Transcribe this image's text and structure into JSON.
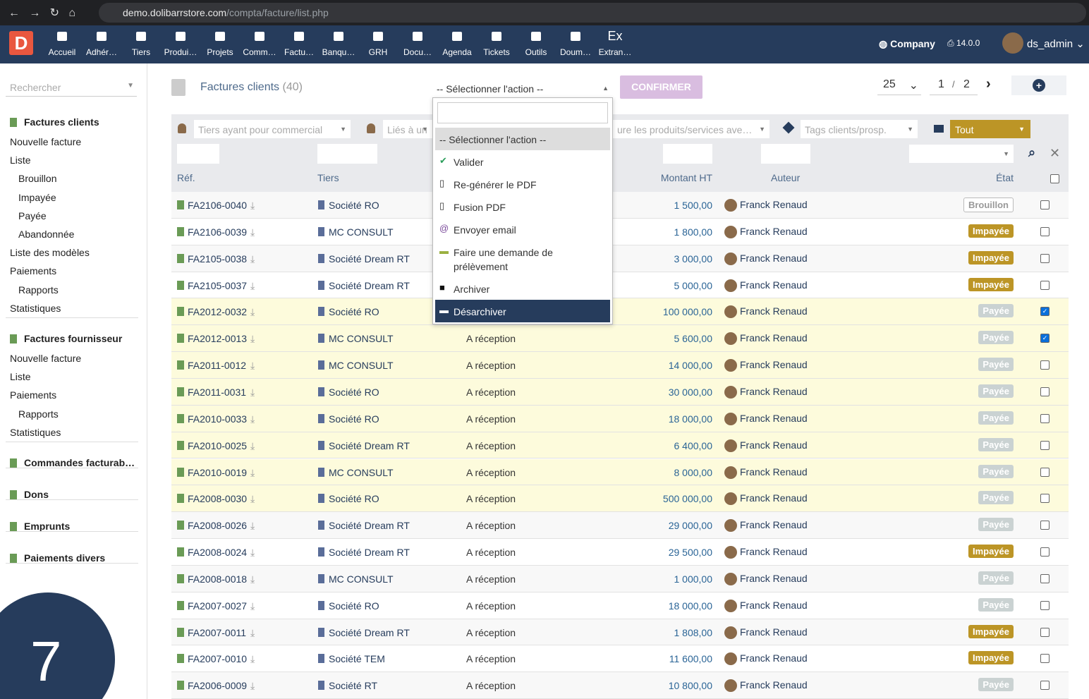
{
  "browser": {
    "url_host": "demo.dolibarrstore.com",
    "url_path": "/compta/facture/list.php"
  },
  "topnav": {
    "logo": "D",
    "items": [
      "Accueil",
      "Adhér…",
      "Tiers",
      "Produi…",
      "Projets",
      "Comm…",
      "Factu…",
      "Banqu…",
      "GRH",
      "Docu…",
      "Agenda",
      "Tickets",
      "Outils",
      "Doum…",
      "Extran…"
    ],
    "extran_icon": "Ex",
    "company": "Company",
    "version": "14.0.0",
    "user": "ds_admin"
  },
  "sidebar": {
    "search": "Rechercher",
    "sections": [
      {
        "title": "Factures clients",
        "items": [
          {
            "label": "Nouvelle facture",
            "sub": false
          },
          {
            "label": "Liste",
            "sub": false
          },
          {
            "label": "Brouillon",
            "sub": true
          },
          {
            "label": "Impayée",
            "sub": true
          },
          {
            "label": "Payée",
            "sub": true
          },
          {
            "label": "Abandonnée",
            "sub": true
          },
          {
            "label": "Liste des modèles",
            "sub": false
          },
          {
            "label": "Paiements",
            "sub": false
          },
          {
            "label": "Rapports",
            "sub": true
          },
          {
            "label": "Statistiques",
            "sub": false
          }
        ]
      },
      {
        "title": "Factures fournisseur",
        "items": [
          {
            "label": "Nouvelle facture",
            "sub": false
          },
          {
            "label": "Liste",
            "sub": false
          },
          {
            "label": "Paiements",
            "sub": false
          },
          {
            "label": "Rapports",
            "sub": true
          },
          {
            "label": "Statistiques",
            "sub": false
          }
        ]
      },
      {
        "title": "Commandes facturab…",
        "items": []
      },
      {
        "title": "Dons",
        "items": []
      },
      {
        "title": "Emprunts",
        "items": []
      },
      {
        "title": "Paiements divers",
        "items": []
      }
    ]
  },
  "list": {
    "title": "Factures clients",
    "count": "(40)",
    "action_select": "-- Sélectionner l'action --",
    "confirm": "CONFIRMER",
    "page_size": "25",
    "page": "1",
    "page_sep": "/",
    "pages": "2"
  },
  "filters": {
    "commercial": "Tiers ayant pour commercial",
    "linked": "Liés à un",
    "products": "ure les produits/services ave…",
    "tags": "Tags clients/prosp.",
    "status": "Tout"
  },
  "columns": {
    "ref": "Réf.",
    "tiers": "Tiers",
    "amount": "Montant HT",
    "author": "Auteur",
    "status": "État"
  },
  "dropdown": {
    "options": [
      "-- Sélectionner l'action --",
      "Valider",
      "Re-générer le PDF",
      "Fusion PDF",
      "Envoyer email",
      "Faire une demande de prélèvement",
      "Archiver",
      "Désarchiver"
    ]
  },
  "rows": [
    {
      "ref": "FA2106-0040",
      "tiers": "Société RO",
      "terms": null,
      "amount": "1 500,00",
      "author": "Franck Renaud",
      "status": "Brouillon",
      "checked": false,
      "highlight": false
    },
    {
      "ref": "FA2106-0039",
      "tiers": "MC CONSULT",
      "terms": null,
      "amount": "1 800,00",
      "author": "Franck Renaud",
      "status": "Impayée",
      "checked": false,
      "highlight": false
    },
    {
      "ref": "FA2105-0038",
      "tiers": "Société Dream RT",
      "terms": null,
      "amount": "3 000,00",
      "author": "Franck Renaud",
      "status": "Impayée",
      "checked": false,
      "highlight": false
    },
    {
      "ref": "FA2105-0037",
      "tiers": "Société Dream RT",
      "terms": null,
      "amount": "5 000,00",
      "author": "Franck Renaud",
      "status": "Impayée",
      "checked": false,
      "highlight": false
    },
    {
      "ref": "FA2012-0032",
      "tiers": "Société RO",
      "terms": null,
      "amount": "100 000,00",
      "author": "Franck Renaud",
      "status": "Payée",
      "checked": true,
      "highlight": true
    },
    {
      "ref": "FA2012-0013",
      "tiers": "MC CONSULT",
      "terms": "A réception",
      "amount": "5 600,00",
      "author": "Franck Renaud",
      "status": "Payée",
      "checked": true,
      "highlight": true
    },
    {
      "ref": "FA2011-0012",
      "tiers": "MC CONSULT",
      "terms": "A réception",
      "amount": "14 000,00",
      "author": "Franck Renaud",
      "status": "Payée",
      "checked": false,
      "highlight": true
    },
    {
      "ref": "FA2011-0031",
      "tiers": "Société RO",
      "terms": "A réception",
      "amount": "30 000,00",
      "author": "Franck Renaud",
      "status": "Payée",
      "checked": false,
      "highlight": true
    },
    {
      "ref": "FA2010-0033",
      "tiers": "Société RO",
      "terms": "A réception",
      "amount": "18 000,00",
      "author": "Franck Renaud",
      "status": "Payée",
      "checked": false,
      "highlight": true
    },
    {
      "ref": "FA2010-0025",
      "tiers": "Société Dream RT",
      "terms": "A réception",
      "amount": "6 400,00",
      "author": "Franck Renaud",
      "status": "Payée",
      "checked": false,
      "highlight": true
    },
    {
      "ref": "FA2010-0019",
      "tiers": "MC CONSULT",
      "terms": "A réception",
      "amount": "8 000,00",
      "author": "Franck Renaud",
      "status": "Payée",
      "checked": false,
      "highlight": true
    },
    {
      "ref": "FA2008-0030",
      "tiers": "Société RO",
      "terms": "A réception",
      "amount": "500 000,00",
      "author": "Franck Renaud",
      "status": "Payée",
      "checked": false,
      "highlight": true
    },
    {
      "ref": "FA2008-0026",
      "tiers": "Société Dream RT",
      "terms": "A réception",
      "amount": "29 000,00",
      "author": "Franck Renaud",
      "status": "Payée",
      "checked": false,
      "highlight": false
    },
    {
      "ref": "FA2008-0024",
      "tiers": "Société Dream RT",
      "terms": "A réception",
      "amount": "29 500,00",
      "author": "Franck Renaud",
      "status": "Impayée",
      "checked": false,
      "highlight": false
    },
    {
      "ref": "FA2008-0018",
      "tiers": "MC CONSULT",
      "terms": "A réception",
      "amount": "1 000,00",
      "author": "Franck Renaud",
      "status": "Payée",
      "checked": false,
      "highlight": false
    },
    {
      "ref": "FA2007-0027",
      "tiers": "Société RO",
      "terms": "A réception",
      "amount": "18 000,00",
      "author": "Franck Renaud",
      "status": "Payée",
      "checked": false,
      "highlight": false
    },
    {
      "ref": "FA2007-0011",
      "tiers": "Société Dream RT",
      "terms": "A réception",
      "amount": "1 808,00",
      "author": "Franck Renaud",
      "status": "Impayée",
      "checked": false,
      "highlight": false
    },
    {
      "ref": "FA2007-0010",
      "tiers": "Société TEM",
      "terms": "A réception",
      "amount": "11 600,00",
      "author": "Franck Renaud",
      "status": "Impayée",
      "checked": false,
      "highlight": false
    },
    {
      "ref": "FA2006-0009",
      "tiers": "Société RT",
      "terms": "A réception",
      "amount": "10 800,00",
      "author": "Franck Renaud",
      "status": "Payée",
      "checked": false,
      "highlight": false
    }
  ],
  "badge": "7"
}
